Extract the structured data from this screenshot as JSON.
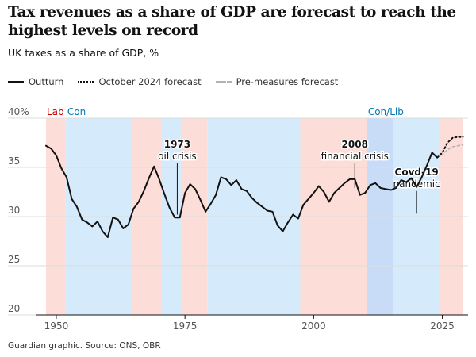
{
  "title": "Tax revenues as a share of GDP are forecast to reach the highest levels on record",
  "subtitle": "UK taxes as a share of GDP, %",
  "legend": [
    {
      "label": "Outturn",
      "style": "solid"
    },
    {
      "label": "October 2024 forecast",
      "style": "dotted"
    },
    {
      "label": "Pre-measures forecast",
      "style": "dashed-grey"
    }
  ],
  "source": "Guardian graphic. Source: ONS, OBR",
  "colors": {
    "labour": "#fdddd8",
    "conservative": "#d5ebfb",
    "coalition": "#c9dcf7",
    "line": "#121212",
    "pre_measures": "#b3b3b3",
    "lab_text": "#c70000",
    "con_text": "#0077b6",
    "conlib_text": "#0077b6"
  },
  "chart_data": {
    "type": "line",
    "xlim": [
      1946,
      2030
    ],
    "ylim": [
      20,
      40
    ],
    "x_ticks": [
      1950,
      1975,
      2000,
      2025
    ],
    "y_ticks": [
      {
        "value": 40,
        "label": "40%"
      },
      {
        "value": 35,
        "label": "35"
      },
      {
        "value": 30,
        "label": "30"
      },
      {
        "value": 25,
        "label": "25"
      },
      {
        "value": 20,
        "label": "20"
      }
    ],
    "government_bands": [
      {
        "party": "lab",
        "start": 1948,
        "end": 1951.8
      },
      {
        "party": "con",
        "start": 1951.8,
        "end": 1964.8
      },
      {
        "party": "lab",
        "start": 1964.8,
        "end": 1970.5
      },
      {
        "party": "con",
        "start": 1970.5,
        "end": 1974.2
      },
      {
        "party": "lab",
        "start": 1974.2,
        "end": 1979.4
      },
      {
        "party": "con",
        "start": 1979.4,
        "end": 1997.4
      },
      {
        "party": "lab",
        "start": 1997.4,
        "end": 2010.4
      },
      {
        "party": "conlib",
        "start": 2010.4,
        "end": 2015.4
      },
      {
        "party": "con",
        "start": 2015.4,
        "end": 2024.5
      },
      {
        "party": "lab",
        "start": 2024.5,
        "end": 2029
      }
    ],
    "band_labels": [
      {
        "text": "Lab",
        "party": "lab",
        "x": 1948
      },
      {
        "text": "Con",
        "party": "con",
        "x": 1952
      },
      {
        "text": "Con/Lib",
        "party": "conlib",
        "x": 2010.4
      }
    ],
    "series": [
      {
        "name": "Outturn",
        "style": "solid",
        "points": [
          [
            1948,
            37.2
          ],
          [
            1949,
            36.9
          ],
          [
            1950,
            36.2
          ],
          [
            1951,
            34.9
          ],
          [
            1952,
            34.0
          ],
          [
            1953,
            31.8
          ],
          [
            1954,
            31.0
          ],
          [
            1955,
            29.7
          ],
          [
            1956,
            29.4
          ],
          [
            1957,
            29.0
          ],
          [
            1958,
            29.5
          ],
          [
            1959,
            28.5
          ],
          [
            1960,
            27.9
          ],
          [
            1961,
            29.9
          ],
          [
            1962,
            29.7
          ],
          [
            1963,
            28.8
          ],
          [
            1964,
            29.2
          ],
          [
            1965,
            30.8
          ],
          [
            1966,
            31.5
          ],
          [
            1967,
            32.6
          ],
          [
            1968,
            33.9
          ],
          [
            1969,
            35.1
          ],
          [
            1970,
            33.8
          ],
          [
            1971,
            32.3
          ],
          [
            1972,
            30.9
          ],
          [
            1973,
            29.9
          ],
          [
            1974,
            29.9
          ],
          [
            1975,
            32.4
          ],
          [
            1976,
            33.3
          ],
          [
            1977,
            32.8
          ],
          [
            1978,
            31.7
          ],
          [
            1979,
            30.5
          ],
          [
            1980,
            31.3
          ],
          [
            1981,
            32.2
          ],
          [
            1982,
            34.0
          ],
          [
            1983,
            33.8
          ],
          [
            1984,
            33.2
          ],
          [
            1985,
            33.7
          ],
          [
            1986,
            32.8
          ],
          [
            1987,
            32.6
          ],
          [
            1988,
            31.9
          ],
          [
            1989,
            31.4
          ],
          [
            1990,
            31.0
          ],
          [
            1991,
            30.6
          ],
          [
            1992,
            30.5
          ],
          [
            1993,
            29.1
          ],
          [
            1994,
            28.5
          ],
          [
            1995,
            29.4
          ],
          [
            1996,
            30.2
          ],
          [
            1997,
            29.8
          ],
          [
            1998,
            31.2
          ],
          [
            1999,
            31.8
          ],
          [
            2000,
            32.4
          ],
          [
            2001,
            33.1
          ],
          [
            2002,
            32.5
          ],
          [
            2003,
            31.5
          ],
          [
            2004,
            32.4
          ],
          [
            2005,
            32.9
          ],
          [
            2006,
            33.4
          ],
          [
            2007,
            33.8
          ],
          [
            2008,
            33.8
          ],
          [
            2009,
            32.2
          ],
          [
            2010,
            32.4
          ],
          [
            2011,
            33.2
          ],
          [
            2012,
            33.4
          ],
          [
            2013,
            32.9
          ],
          [
            2014,
            32.8
          ],
          [
            2015,
            32.7
          ],
          [
            2016,
            32.9
          ],
          [
            2017,
            33.7
          ],
          [
            2018,
            33.5
          ],
          [
            2019,
            33.9
          ],
          [
            2020,
            33.0
          ],
          [
            2021,
            34.0
          ],
          [
            2022,
            35.2
          ],
          [
            2023,
            36.5
          ],
          [
            2024,
            36.0
          ]
        ]
      },
      {
        "name": "October 2024 forecast",
        "style": "dotted",
        "points": [
          [
            2024,
            36.0
          ],
          [
            2025,
            36.5
          ],
          [
            2026,
            37.5
          ],
          [
            2027,
            38.0
          ],
          [
            2028,
            38.1
          ],
          [
            2029,
            38.1
          ]
        ]
      },
      {
        "name": "Pre-measures forecast",
        "style": "dashed-grey",
        "points": [
          [
            2024,
            36.0
          ],
          [
            2025,
            36.3
          ],
          [
            2026,
            36.8
          ],
          [
            2027,
            37.1
          ],
          [
            2028,
            37.2
          ],
          [
            2029,
            37.3
          ]
        ]
      }
    ],
    "annotations": [
      {
        "lines": [
          "1973",
          "oil crisis"
        ],
        "x": 1973.5,
        "y_from": 35.4,
        "y_to": 30.2
      },
      {
        "lines": [
          "2008",
          "financial crisis"
        ],
        "x": 2008,
        "y_from": 35.4,
        "y_to": 32.9
      },
      {
        "lines": [
          "Covd-19",
          "pandemic"
        ],
        "x": 2020,
        "y_from": 32.6,
        "y_to": 30.3
      }
    ]
  }
}
